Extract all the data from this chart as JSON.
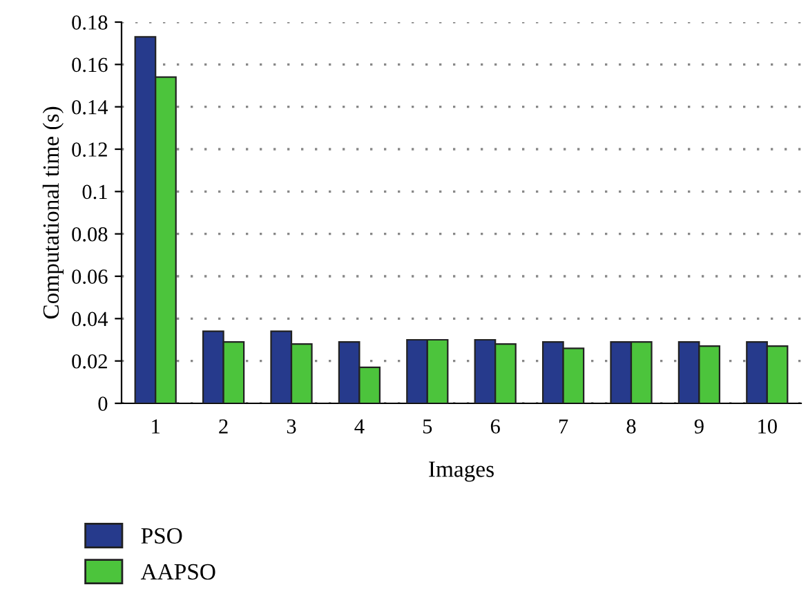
{
  "chart_data": {
    "type": "bar",
    "xlabel": "Images",
    "ylabel": "Computational time (s)",
    "categories": [
      "1",
      "2",
      "3",
      "4",
      "5",
      "6",
      "7",
      "8",
      "9",
      "10"
    ],
    "series": [
      {
        "name": "PSO",
        "color": "#263a8c",
        "values": [
          0.173,
          0.034,
          0.034,
          0.029,
          0.03,
          0.03,
          0.029,
          0.029,
          0.029,
          0.029
        ]
      },
      {
        "name": "AAPSO",
        "color": "#4cc43c",
        "values": [
          0.154,
          0.029,
          0.028,
          0.017,
          0.03,
          0.028,
          0.026,
          0.029,
          0.027,
          0.027
        ]
      }
    ],
    "ylim": [
      0,
      0.18
    ],
    "yticks": [
      0,
      0.02,
      0.04,
      0.06,
      0.08,
      0.1,
      0.12,
      0.14,
      0.16,
      0.18
    ],
    "grid": "y",
    "legend": "bottom left"
  }
}
